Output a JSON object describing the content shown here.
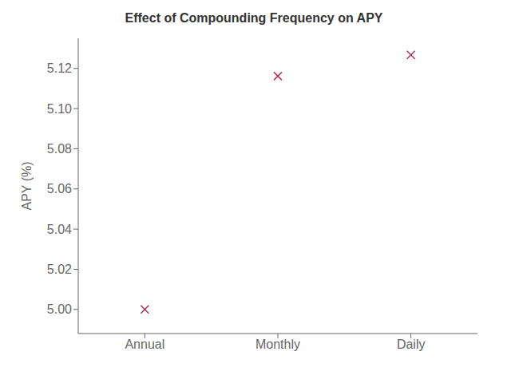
{
  "chart_data": {
    "type": "scatter",
    "title": "Effect of Compounding Frequency on APY",
    "ylabel": "APY (%)",
    "categories": [
      "Annual",
      "Monthly",
      "Daily"
    ],
    "values": [
      5.0,
      5.116189788173,
      5.126749646744
    ],
    "color": "#b03060",
    "marker": "x",
    "ylim": [
      4.988,
      5.135
    ],
    "yticks": [
      {
        "value": 5,
        "label": "5.00"
      },
      5.02,
      5.04,
      5.06,
      5.08,
      {
        "value": 5.1,
        "label": "5.10"
      },
      5.12
    ]
  }
}
